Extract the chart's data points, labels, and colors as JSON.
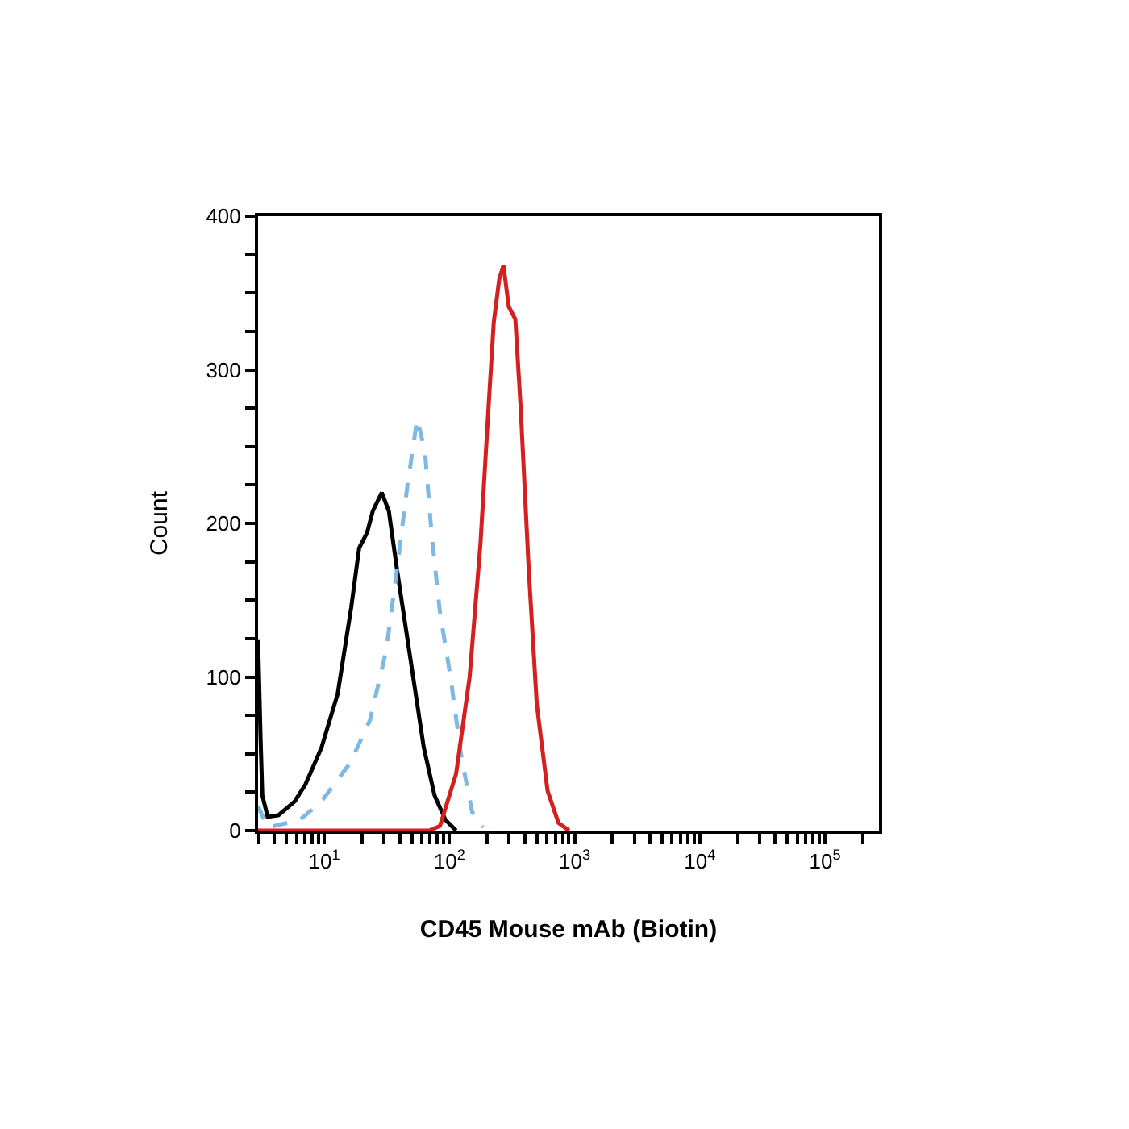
{
  "chart_data": {
    "type": "line",
    "xlabel": "CD45 Mouse mAb (Biotin)",
    "ylabel": "Count",
    "log": "x",
    "grid": false,
    "marker": "none",
    "xlim": [
      2.96,
      270000
    ],
    "xticks": [
      {
        "value": 10,
        "label": "10$^{1}$"
      },
      {
        "value": 100,
        "label": "10$^{2}$"
      },
      {
        "value": 1000,
        "label": "10$^{3}$"
      },
      {
        "value": 10000,
        "label": "10$^{4}$"
      },
      {
        "value": 100000,
        "label": "10$^{5}$"
      },
      {
        "value": 3,
        "label": null
      },
      {
        "value": 4,
        "label": null
      },
      {
        "value": 5,
        "label": null
      },
      {
        "value": 6,
        "label": null
      },
      {
        "value": 7,
        "label": null
      },
      {
        "value": 8,
        "label": null
      },
      {
        "value": 9,
        "label": null
      },
      {
        "value": 20,
        "label": null
      },
      {
        "value": 30,
        "label": null
      },
      {
        "value": 40,
        "label": null
      },
      {
        "value": 50,
        "label": null
      },
      {
        "value": 60,
        "label": null
      },
      {
        "value": 70,
        "label": null
      },
      {
        "value": 80,
        "label": null
      },
      {
        "value": 90,
        "label": null
      },
      {
        "value": 200,
        "label": null
      },
      {
        "value": 300,
        "label": null
      },
      {
        "value": 400,
        "label": null
      },
      {
        "value": 500,
        "label": null
      },
      {
        "value": 600,
        "label": null
      },
      {
        "value": 700,
        "label": null
      },
      {
        "value": 800,
        "label": null
      },
      {
        "value": 900,
        "label": null
      },
      {
        "value": 2000,
        "label": null
      },
      {
        "value": 3000,
        "label": null
      },
      {
        "value": 4000,
        "label": null
      },
      {
        "value": 5000,
        "label": null
      },
      {
        "value": 6000,
        "label": null
      },
      {
        "value": 7000,
        "label": null
      },
      {
        "value": 8000,
        "label": null
      },
      {
        "value": 9000,
        "label": null
      },
      {
        "value": 20000,
        "label": null
      },
      {
        "value": 30000,
        "label": null
      },
      {
        "value": 40000,
        "label": null
      },
      {
        "value": 50000,
        "label": null
      },
      {
        "value": 60000,
        "label": null
      },
      {
        "value": 70000,
        "label": null
      },
      {
        "value": 80000,
        "label": null
      },
      {
        "value": 90000,
        "label": null
      },
      {
        "value": 200000,
        "label": null
      }
    ],
    "ylim": [
      0,
      400
    ],
    "yticks": [
      0,
      100,
      200,
      300,
      400,
      {
        "value": 25,
        "label": null
      },
      {
        "value": 50,
        "label": null
      },
      {
        "value": 75,
        "label": null
      },
      {
        "value": 125,
        "label": null
      },
      {
        "value": 150,
        "label": null
      },
      {
        "value": 175,
        "label": null
      },
      {
        "value": 225,
        "label": null
      },
      {
        "value": 250,
        "label": null
      },
      {
        "value": 275,
        "label": null
      },
      {
        "value": 325,
        "label": null
      },
      {
        "value": 350,
        "label": null
      },
      {
        "value": 375,
        "label": null
      }
    ],
    "series": [
      {
        "color": "#000000",
        "line_style": "solid",
        "x": [
          2.96,
          3.1,
          3.2,
          3.53,
          4.31,
          5.8,
          7.07,
          9.5,
          12.8,
          16.4,
          19.0,
          22.0,
          24.4,
          28.8,
          32.8,
          38.1,
          44.2,
          51.3,
          62.4,
          76.0,
          92.9,
          113
        ],
        "values": [
          124,
          60,
          23,
          9,
          10,
          19,
          30,
          54,
          89,
          145,
          184,
          194,
          208,
          220,
          208,
          170,
          135,
          100,
          54,
          23,
          7,
          0
        ]
      },
      {
        "color": "#7fb8e0",
        "line_style": "dashed",
        "x": [
          2.96,
          3.53,
          6.4,
          9.5,
          16.1,
          23.2,
          31.2,
          38.1,
          46.4,
          55.3,
          63.7,
          72.4,
          84,
          102,
          125,
          152,
          185
        ],
        "values": [
          16,
          2,
          7,
          19,
          44,
          72,
          117,
          170,
          226,
          268,
          247,
          191,
          142,
          100,
          47,
          12,
          2
        ]
      },
      {
        "color": "#d42020",
        "line_style": "solid",
        "x": [
          2.96,
          69,
          84,
          113,
          145,
          177,
          205,
          226,
          250,
          270,
          298,
          336,
          371,
          430,
          499,
          608,
          743,
          904
        ],
        "values": [
          0,
          0,
          3,
          37,
          100,
          187,
          275,
          331,
          359,
          368,
          341,
          333,
          275,
          170,
          82,
          26,
          5,
          0
        ]
      }
    ]
  }
}
